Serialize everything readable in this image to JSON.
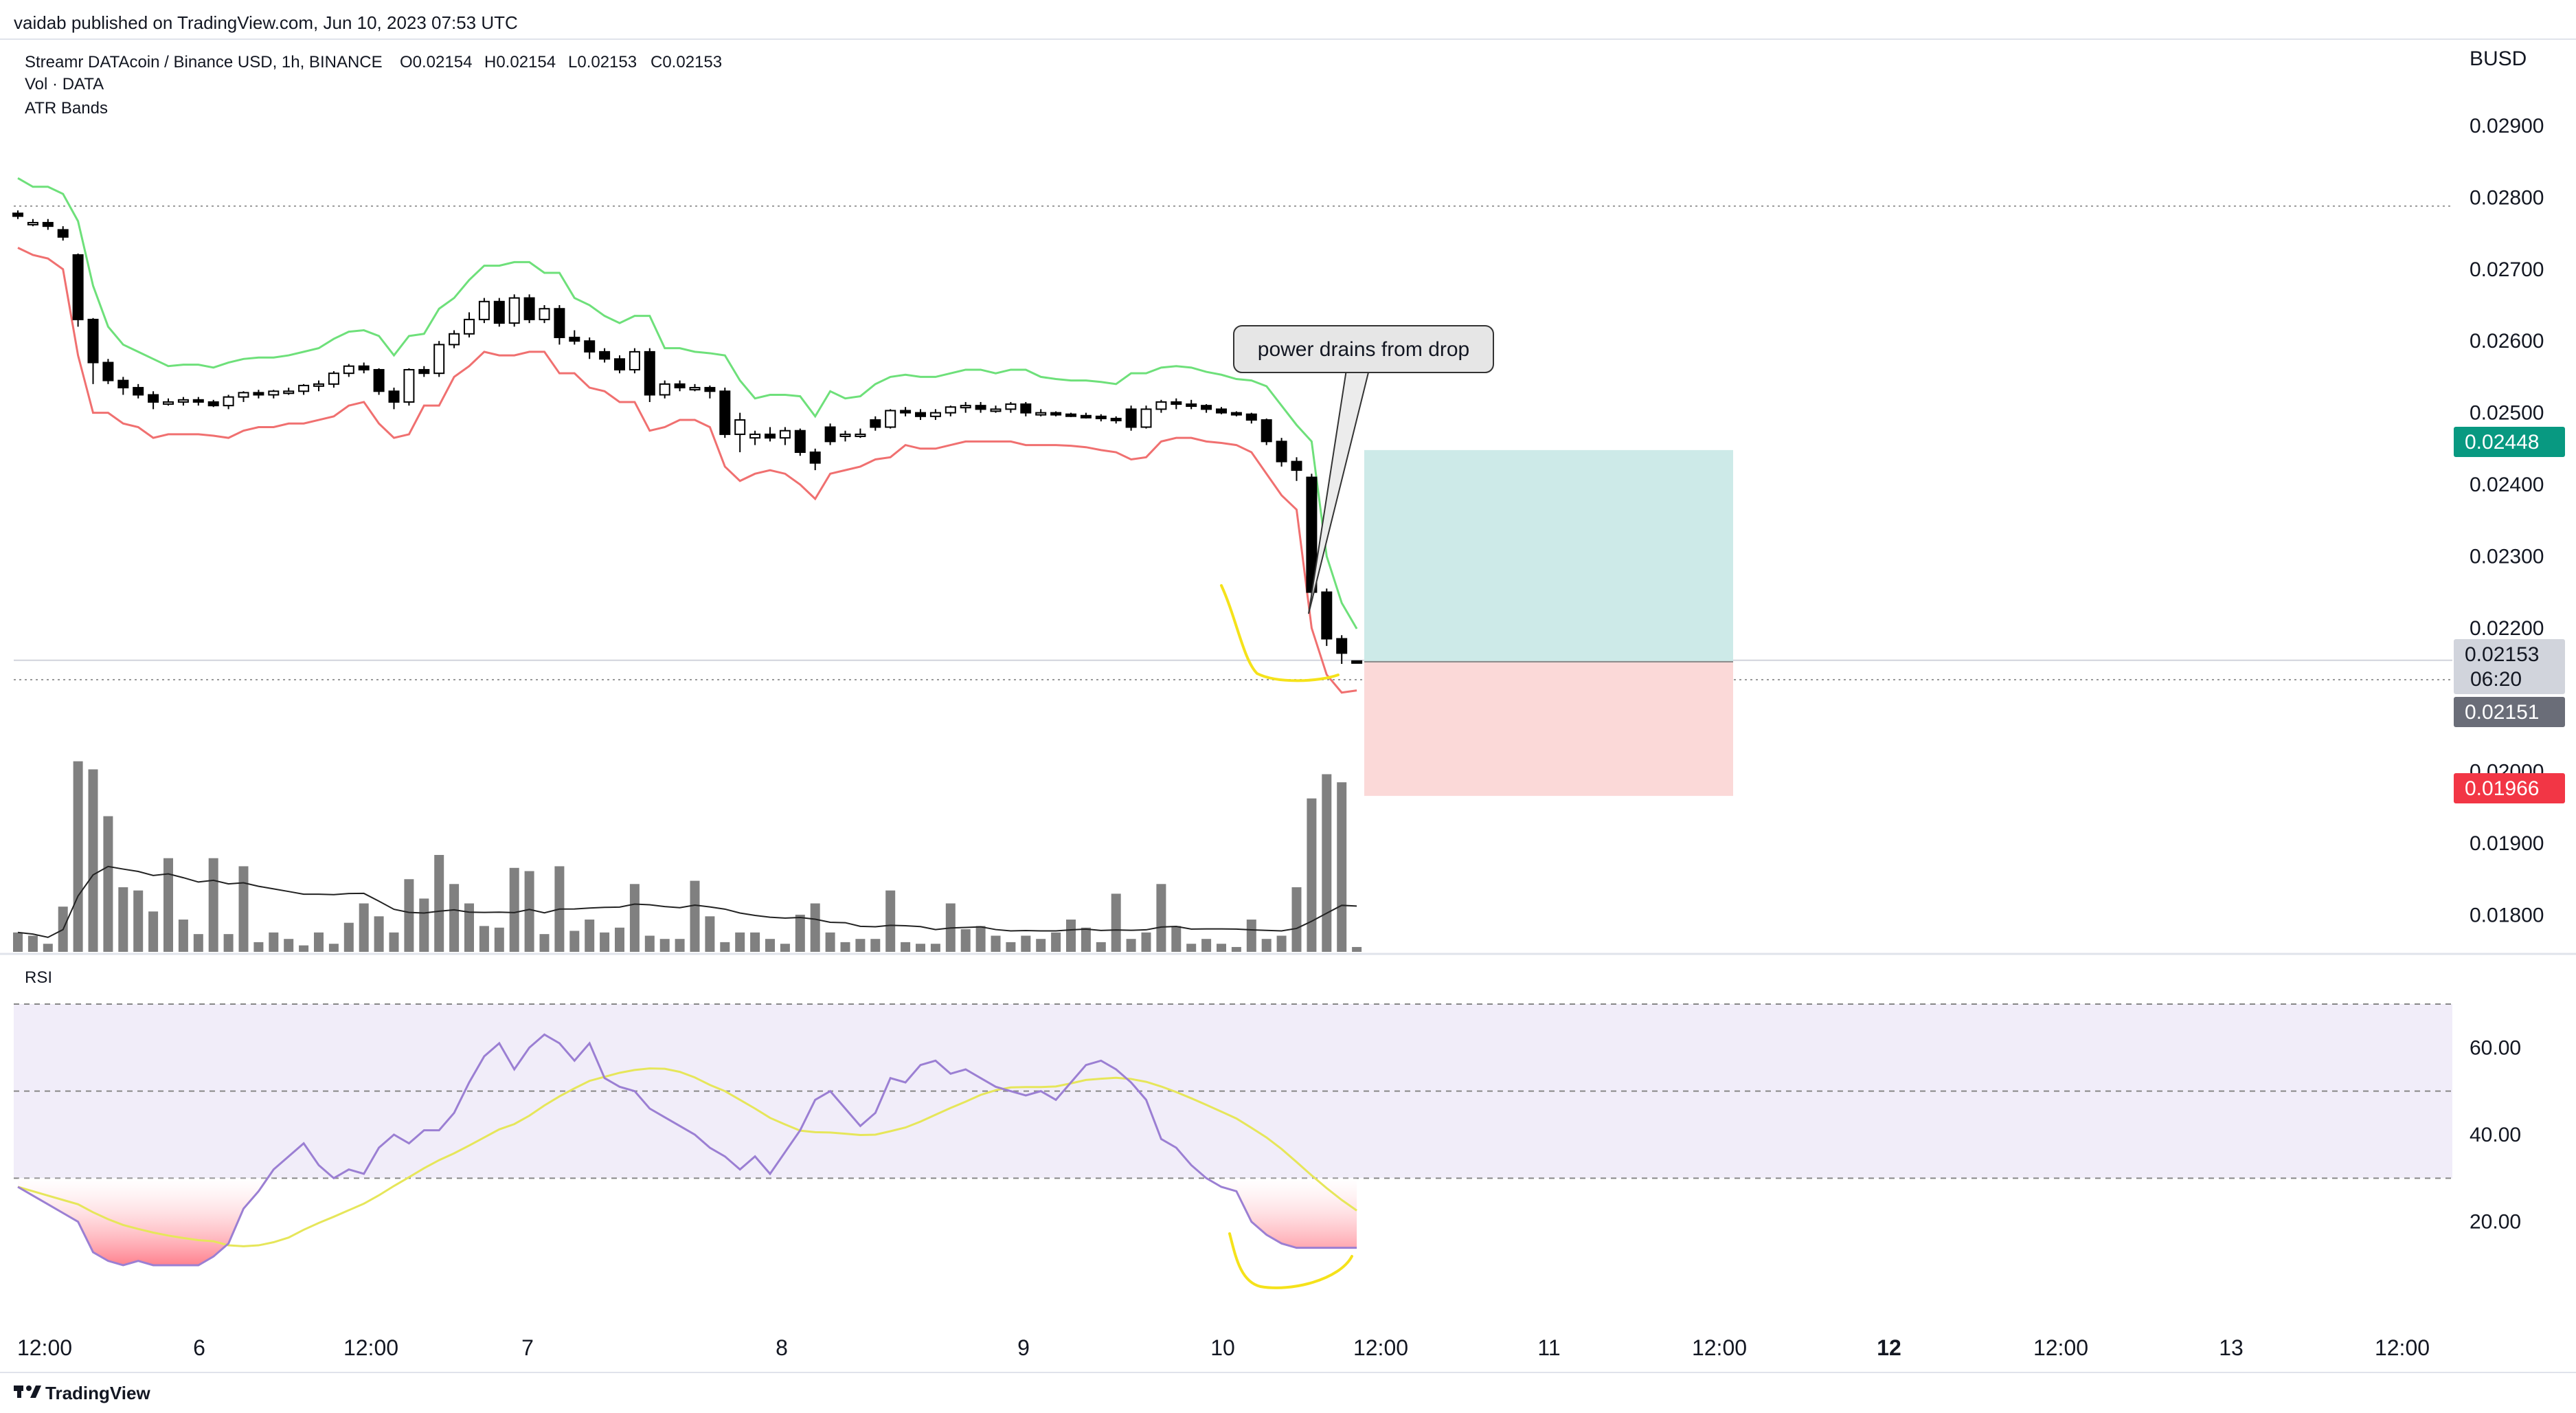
{
  "header": {
    "published": "vaidab published on TradingView.com, Jun 10, 2023 07:53 UTC",
    "symbol_line": "Streamr DATAcoin / Binance USD, 1h, BINANCE",
    "ohlc": {
      "o": "O0.02154",
      "h": "H0.02154",
      "l": "L0.02153",
      "c": "C0.02153"
    },
    "indicator_vol": "Vol · DATA",
    "indicator_atr": "ATR Bands",
    "currency": "BUSD"
  },
  "footer": {
    "brand": "TradingView"
  },
  "annotation": {
    "text": "power drains from drop"
  },
  "price_badges": {
    "target": "0.02448",
    "last": "0.02153",
    "countdown": "06:20",
    "prev": "0.02151",
    "stop": "0.01966"
  },
  "colors": {
    "upper_band": "#6ee07a",
    "lower_band": "#f07070",
    "rsi_line": "#9b7fd3",
    "rsi_ma": "#e6e65a",
    "target_badge": "#089981",
    "stop_badge": "#f23645",
    "volume": "#808080",
    "annot_highlight": "#f5e21a",
    "profit_zone": "#cdeae8",
    "loss_zone": "#fbd9d8",
    "rsi_band": "#f1edf9"
  },
  "chart_data": [
    {
      "type": "candlestick",
      "title": "Streamr DATAcoin / Binance USD, 1h, BINANCE",
      "ylabel": "BUSD",
      "x_ticks": [
        "12:00",
        "6",
        "12:00",
        "7",
        "8",
        "9",
        "10",
        "12:00",
        "11",
        "12:00",
        "12",
        "12:00",
        "13",
        "12:00"
      ],
      "y_ticks": [
        "0.02900",
        "0.02800",
        "0.02700",
        "0.02600",
        "0.02500",
        "0.02400",
        "0.02300",
        "0.02200",
        "0.02000",
        "0.01900",
        "0.01800"
      ],
      "ylim": [
        0.0175,
        0.0297
      ],
      "candles": [
        {
          "o": 0.02778,
          "h": 0.02782,
          "l": 0.0277,
          "c": 0.02774
        },
        {
          "o": 0.02765,
          "h": 0.0277,
          "l": 0.0276,
          "c": 0.02765
        },
        {
          "o": 0.02765,
          "h": 0.0277,
          "l": 0.02755,
          "c": 0.0276
        },
        {
          "o": 0.02755,
          "h": 0.0276,
          "l": 0.0274,
          "c": 0.02745
        },
        {
          "o": 0.0272,
          "h": 0.02722,
          "l": 0.0262,
          "c": 0.0263
        },
        {
          "o": 0.0263,
          "h": 0.02632,
          "l": 0.0254,
          "c": 0.0257
        },
        {
          "o": 0.0257,
          "h": 0.02575,
          "l": 0.0254,
          "c": 0.02545
        },
        {
          "o": 0.02545,
          "h": 0.0255,
          "l": 0.02525,
          "c": 0.02535
        },
        {
          "o": 0.02535,
          "h": 0.0254,
          "l": 0.0252,
          "c": 0.02525
        },
        {
          "o": 0.02525,
          "h": 0.0253,
          "l": 0.02505,
          "c": 0.02515
        },
        {
          "o": 0.02515,
          "h": 0.0252,
          "l": 0.0251,
          "c": 0.02515
        },
        {
          "o": 0.02515,
          "h": 0.02522,
          "l": 0.0251,
          "c": 0.02518
        },
        {
          "o": 0.02518,
          "h": 0.02522,
          "l": 0.0251,
          "c": 0.02515
        },
        {
          "o": 0.02515,
          "h": 0.02518,
          "l": 0.02508,
          "c": 0.0251
        },
        {
          "o": 0.0251,
          "h": 0.02525,
          "l": 0.02505,
          "c": 0.02522
        },
        {
          "o": 0.02522,
          "h": 0.0253,
          "l": 0.02515,
          "c": 0.02528
        },
        {
          "o": 0.02528,
          "h": 0.02532,
          "l": 0.0252,
          "c": 0.02525
        },
        {
          "o": 0.02525,
          "h": 0.02532,
          "l": 0.0252,
          "c": 0.0253
        },
        {
          "o": 0.0253,
          "h": 0.02535,
          "l": 0.02525,
          "c": 0.0253
        },
        {
          "o": 0.0253,
          "h": 0.0254,
          "l": 0.02525,
          "c": 0.02538
        },
        {
          "o": 0.02538,
          "h": 0.02545,
          "l": 0.0253,
          "c": 0.0254
        },
        {
          "o": 0.0254,
          "h": 0.02558,
          "l": 0.02535,
          "c": 0.02555
        },
        {
          "o": 0.02555,
          "h": 0.02568,
          "l": 0.0255,
          "c": 0.02565
        },
        {
          "o": 0.02565,
          "h": 0.0257,
          "l": 0.02555,
          "c": 0.0256
        },
        {
          "o": 0.0256,
          "h": 0.02562,
          "l": 0.02525,
          "c": 0.0253
        },
        {
          "o": 0.0253,
          "h": 0.02535,
          "l": 0.02505,
          "c": 0.02515
        },
        {
          "o": 0.02515,
          "h": 0.02562,
          "l": 0.0251,
          "c": 0.0256
        },
        {
          "o": 0.0256,
          "h": 0.02565,
          "l": 0.0255,
          "c": 0.02555
        },
        {
          "o": 0.02555,
          "h": 0.026,
          "l": 0.0255,
          "c": 0.02595
        },
        {
          "o": 0.02595,
          "h": 0.02615,
          "l": 0.0259,
          "c": 0.0261
        },
        {
          "o": 0.0261,
          "h": 0.0264,
          "l": 0.02605,
          "c": 0.0263
        },
        {
          "o": 0.0263,
          "h": 0.0266,
          "l": 0.02625,
          "c": 0.02655
        },
        {
          "o": 0.02655,
          "h": 0.0266,
          "l": 0.0262,
          "c": 0.02625
        },
        {
          "o": 0.02625,
          "h": 0.02665,
          "l": 0.0262,
          "c": 0.0266
        },
        {
          "o": 0.0266,
          "h": 0.02665,
          "l": 0.02625,
          "c": 0.0263
        },
        {
          "o": 0.0263,
          "h": 0.0265,
          "l": 0.02625,
          "c": 0.02645
        },
        {
          "o": 0.02645,
          "h": 0.0265,
          "l": 0.02595,
          "c": 0.02605
        },
        {
          "o": 0.02605,
          "h": 0.02615,
          "l": 0.02595,
          "c": 0.026
        },
        {
          "o": 0.026,
          "h": 0.02605,
          "l": 0.02575,
          "c": 0.02585
        },
        {
          "o": 0.02585,
          "h": 0.0259,
          "l": 0.0257,
          "c": 0.02575
        },
        {
          "o": 0.02575,
          "h": 0.0258,
          "l": 0.02555,
          "c": 0.0256
        },
        {
          "o": 0.0256,
          "h": 0.0259,
          "l": 0.02555,
          "c": 0.02585
        },
        {
          "o": 0.02585,
          "h": 0.0259,
          "l": 0.02515,
          "c": 0.02525
        },
        {
          "o": 0.02525,
          "h": 0.02545,
          "l": 0.0252,
          "c": 0.0254
        },
        {
          "o": 0.0254,
          "h": 0.02545,
          "l": 0.0253,
          "c": 0.02535
        },
        {
          "o": 0.02535,
          "h": 0.0254,
          "l": 0.0253,
          "c": 0.02535
        },
        {
          "o": 0.02535,
          "h": 0.02538,
          "l": 0.0252,
          "c": 0.0253
        },
        {
          "o": 0.0253,
          "h": 0.02535,
          "l": 0.02465,
          "c": 0.0247
        },
        {
          "o": 0.0247,
          "h": 0.025,
          "l": 0.02445,
          "c": 0.0249
        },
        {
          "o": 0.02465,
          "h": 0.02475,
          "l": 0.02455,
          "c": 0.0247
        },
        {
          "o": 0.0247,
          "h": 0.0248,
          "l": 0.0246,
          "c": 0.02465
        },
        {
          "o": 0.02465,
          "h": 0.0248,
          "l": 0.02455,
          "c": 0.02475
        },
        {
          "o": 0.02475,
          "h": 0.02478,
          "l": 0.0244,
          "c": 0.02445
        },
        {
          "o": 0.02445,
          "h": 0.0245,
          "l": 0.0242,
          "c": 0.0243
        },
        {
          "o": 0.0248,
          "h": 0.02485,
          "l": 0.02455,
          "c": 0.0246
        },
        {
          "o": 0.0247,
          "h": 0.02475,
          "l": 0.0246,
          "c": 0.0247
        },
        {
          "o": 0.0247,
          "h": 0.02478,
          "l": 0.02465,
          "c": 0.0247
        },
        {
          "o": 0.0249,
          "h": 0.02495,
          "l": 0.02475,
          "c": 0.0248
        },
        {
          "o": 0.0248,
          "h": 0.02505,
          "l": 0.02478,
          "c": 0.02503
        },
        {
          "o": 0.02503,
          "h": 0.02508,
          "l": 0.02495,
          "c": 0.025
        },
        {
          "o": 0.025,
          "h": 0.02505,
          "l": 0.0249,
          "c": 0.02495
        },
        {
          "o": 0.02495,
          "h": 0.02505,
          "l": 0.0249,
          "c": 0.025
        },
        {
          "o": 0.025,
          "h": 0.0251,
          "l": 0.02495,
          "c": 0.02508
        },
        {
          "o": 0.02508,
          "h": 0.02515,
          "l": 0.025,
          "c": 0.0251
        },
        {
          "o": 0.0251,
          "h": 0.02515,
          "l": 0.025,
          "c": 0.02505
        },
        {
          "o": 0.02505,
          "h": 0.0251,
          "l": 0.025,
          "c": 0.02505
        },
        {
          "o": 0.02505,
          "h": 0.02515,
          "l": 0.025,
          "c": 0.02512
        },
        {
          "o": 0.02512,
          "h": 0.02515,
          "l": 0.02495,
          "c": 0.025
        },
        {
          "o": 0.025,
          "h": 0.02505,
          "l": 0.02495,
          "c": 0.025
        },
        {
          "o": 0.025,
          "h": 0.02502,
          "l": 0.02495,
          "c": 0.02498
        },
        {
          "o": 0.02498,
          "h": 0.025,
          "l": 0.02494,
          "c": 0.02496
        },
        {
          "o": 0.02496,
          "h": 0.025,
          "l": 0.02492,
          "c": 0.02495
        },
        {
          "o": 0.02495,
          "h": 0.02498,
          "l": 0.02488,
          "c": 0.02492
        },
        {
          "o": 0.02492,
          "h": 0.02495,
          "l": 0.02485,
          "c": 0.0249
        },
        {
          "o": 0.02505,
          "h": 0.0251,
          "l": 0.02475,
          "c": 0.0248
        },
        {
          "o": 0.0248,
          "h": 0.0251,
          "l": 0.02478,
          "c": 0.02505
        },
        {
          "o": 0.02505,
          "h": 0.02518,
          "l": 0.025,
          "c": 0.02515
        },
        {
          "o": 0.02515,
          "h": 0.0252,
          "l": 0.02505,
          "c": 0.02512
        },
        {
          "o": 0.02512,
          "h": 0.02518,
          "l": 0.02505,
          "c": 0.0251
        },
        {
          "o": 0.0251,
          "h": 0.02512,
          "l": 0.025,
          "c": 0.02505
        },
        {
          "o": 0.02505,
          "h": 0.02508,
          "l": 0.02498,
          "c": 0.025
        },
        {
          "o": 0.025,
          "h": 0.02502,
          "l": 0.02495,
          "c": 0.02498
        },
        {
          "o": 0.02498,
          "h": 0.025,
          "l": 0.02485,
          "c": 0.0249
        },
        {
          "o": 0.0249,
          "h": 0.02492,
          "l": 0.02455,
          "c": 0.0246
        },
        {
          "o": 0.0246,
          "h": 0.02465,
          "l": 0.02425,
          "c": 0.02432
        },
        {
          "o": 0.02432,
          "h": 0.02438,
          "l": 0.02405,
          "c": 0.0242
        },
        {
          "o": 0.0241,
          "h": 0.02415,
          "l": 0.0224,
          "c": 0.0225
        },
        {
          "o": 0.0225,
          "h": 0.02255,
          "l": 0.02175,
          "c": 0.02185
        },
        {
          "o": 0.02185,
          "h": 0.0219,
          "l": 0.0215,
          "c": 0.02165
        },
        {
          "o": 0.02154,
          "h": 0.02154,
          "l": 0.02153,
          "c": 0.02153
        }
      ],
      "volume": [
        12,
        10,
        5,
        28,
        118,
        113,
        84,
        40,
        38,
        25,
        58,
        20,
        11,
        58,
        11,
        53,
        6,
        12,
        8,
        4,
        12,
        5,
        18,
        30,
        22,
        12,
        45,
        33,
        60,
        42,
        30,
        16,
        15,
        52,
        50,
        11,
        53,
        13,
        20,
        12,
        15,
        42,
        10,
        8,
        8,
        44,
        22,
        6,
        12,
        12,
        8,
        5,
        23,
        30,
        12,
        6,
        8,
        8,
        38,
        6,
        5,
        5,
        30,
        14,
        16,
        10,
        6,
        10,
        8,
        12,
        20,
        15,
        6,
        36,
        8,
        12,
        42,
        16,
        5,
        8,
        5,
        3,
        20,
        8,
        10,
        40,
        95,
        110,
        105,
        3
      ]
    },
    {
      "type": "line",
      "title": "RSI",
      "y_ticks": [
        "60.00",
        "40.00",
        "20.00"
      ],
      "ylim": [
        7,
        73
      ],
      "bands": [
        70,
        50,
        30
      ],
      "rsi": [
        28,
        26,
        24,
        22,
        20,
        13,
        11,
        10,
        11,
        10,
        10,
        10,
        10,
        12,
        15,
        23,
        27,
        32,
        35,
        38,
        33,
        30,
        32,
        31,
        37,
        40,
        38,
        41,
        41,
        45,
        52,
        58,
        61,
        55,
        60,
        63,
        61,
        57,
        61,
        53,
        51,
        50,
        46,
        44,
        42,
        40,
        37,
        35,
        32,
        35,
        31,
        36,
        41,
        48,
        50,
        46,
        42,
        45,
        53,
        52,
        56,
        57,
        54,
        55,
        53,
        51,
        50,
        49,
        50,
        48,
        52,
        56,
        57,
        55,
        52,
        48,
        39,
        37,
        33,
        30,
        28,
        27,
        20,
        17,
        15,
        14,
        14,
        14,
        14,
        14
      ]
    }
  ]
}
